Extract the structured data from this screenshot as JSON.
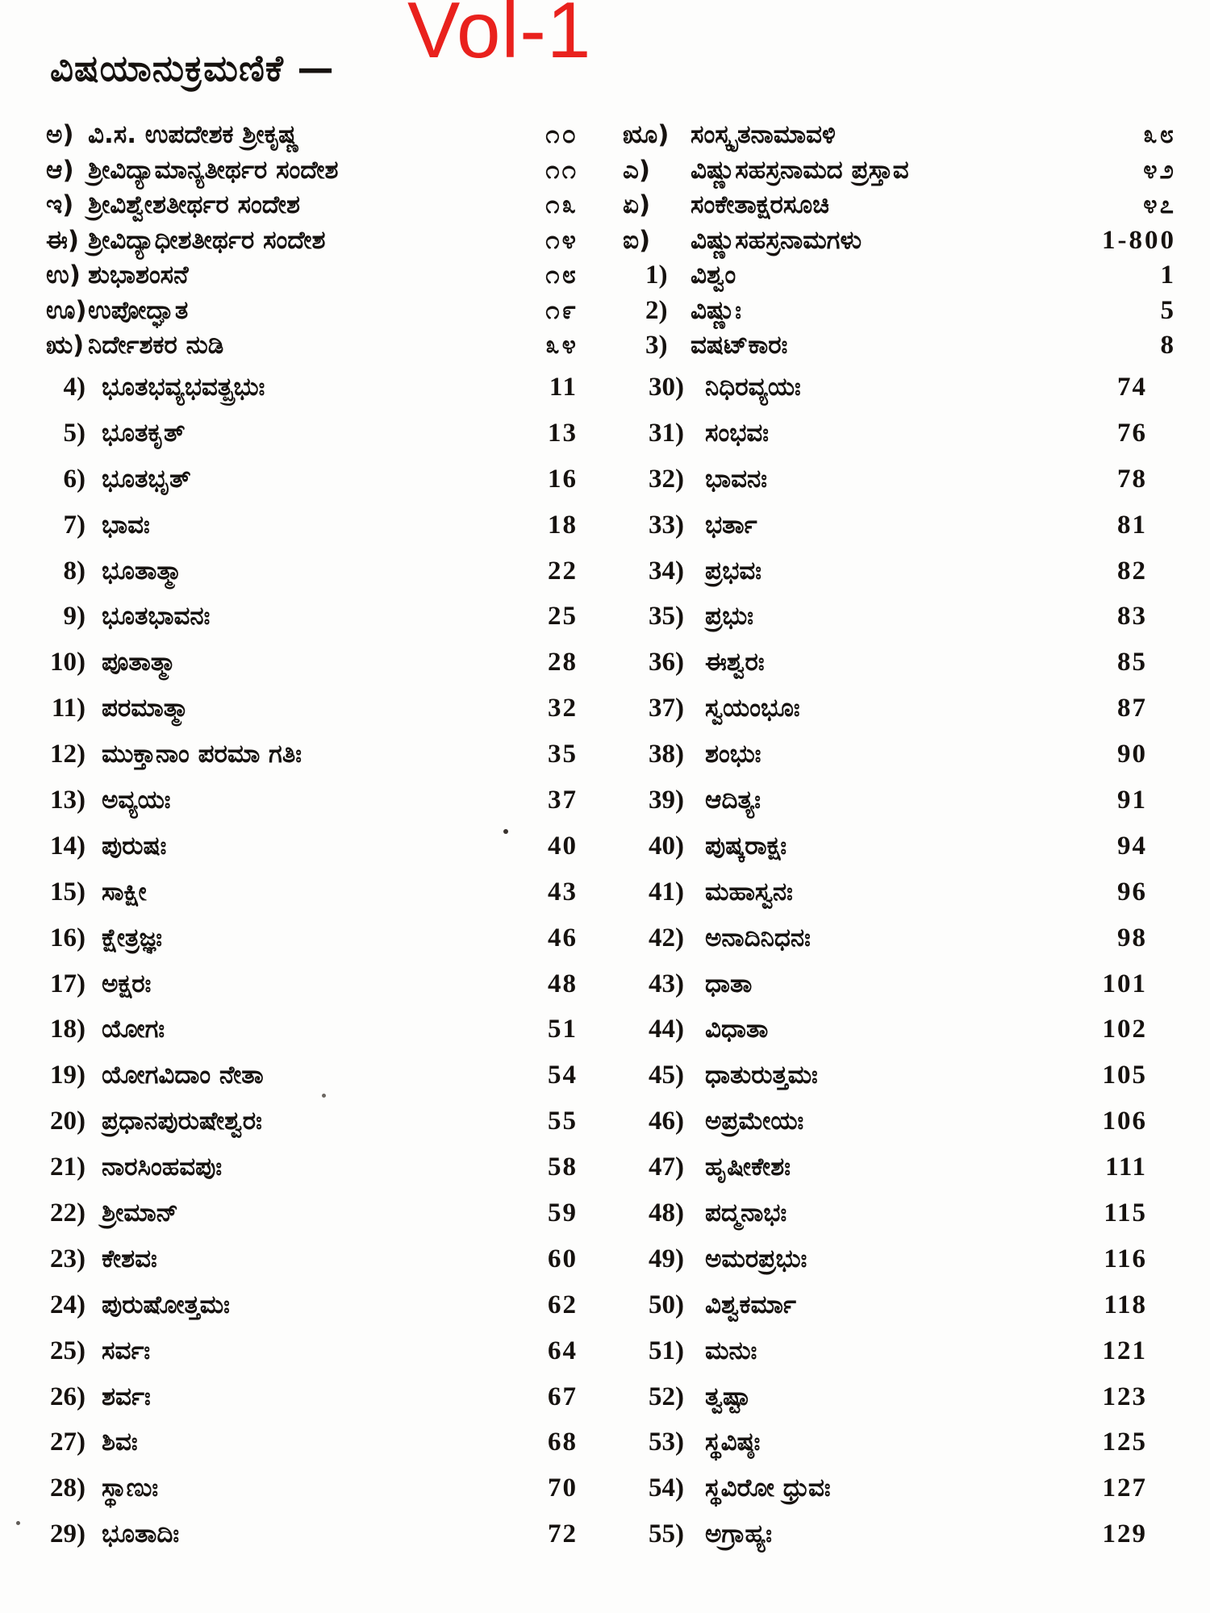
{
  "page": {
    "volume_label": "Vol-1",
    "heading": "ವಿಷಯಾನುಕ್ರಮಣಿಕೆ —"
  },
  "colors": {
    "volume_red": "#e9211d",
    "ink": "#16120f",
    "paper": "#fdfdfc"
  },
  "front_matter": {
    "left": [
      {
        "label": "ಅ)",
        "title": "ವಿ.ಸ. ಉಪದೇಶಕ ಶ್ರೀಕೃಷ್ಣ",
        "page": "೧೦"
      },
      {
        "label": "ಆ)",
        "title": "ಶ್ರೀವಿದ್ಯಾಮಾನ್ಯತೀರ್ಥರ ಸಂದೇಶ",
        "page": "೧೧"
      },
      {
        "label": "ಇ)",
        "title": "ಶ್ರೀವಿಶ್ವೇಶತೀರ್ಥರ ಸಂದೇಶ",
        "page": "೧೩"
      },
      {
        "label": "ಈ)",
        "title": "ಶ್ರೀವಿದ್ಯಾಧೀಶತೀರ್ಥರ ಸಂದೇಶ",
        "page": "೧೪"
      },
      {
        "label": "ಉ)",
        "title": "ಶುಭಾಶಂಸನೆ",
        "page": "೧೮"
      },
      {
        "label": "ಊ)",
        "title": "ಉಪೋದ್ಘಾತ",
        "page": "೧೯"
      },
      {
        "label": "ಋ)",
        "title": "ನಿರ್ದೇಶಕರ ನುಡಿ",
        "page": "೩೪"
      }
    ],
    "right": [
      {
        "label": "ೠ)",
        "title": "ಸಂಸ್ಕೃತನಾಮಾವಳಿ",
        "page": "೩೮"
      },
      {
        "label": "ಎ)",
        "title": "ವಿಷ್ಣುಸಹಸ್ರನಾಮದ ಪ್ರಸ್ತಾವ",
        "page": "೪೨"
      },
      {
        "label": "ಏ)",
        "title": "ಸಂಕೇತಾಕ್ಷರಸೂಚಿ",
        "page": "೪೭"
      },
      {
        "label": "ಐ)",
        "title": "ವಿಷ್ಣುಸಹಸ್ರನಾಮಗಳು",
        "page": "1-800",
        "style": "range"
      },
      {
        "label": "1)",
        "title": "ವಿಶ್ವಂ",
        "page": "1",
        "style": "numbered"
      },
      {
        "label": "2)",
        "title": "ವಿಷ್ಣುಃ",
        "page": "5",
        "style": "numbered"
      },
      {
        "label": "3)",
        "title": "ವಷಟ್‌ಕಾರಃ",
        "page": "8",
        "style": "numbered"
      }
    ]
  },
  "names_index": {
    "left": [
      {
        "label": "4)",
        "title": "ಭೂತಭವ್ಯಭವತ್ಪ್ರಭುಃ",
        "page": "11"
      },
      {
        "label": "5)",
        "title": "ಭೂತಕೃತ್",
        "page": "13"
      },
      {
        "label": "6)",
        "title": "ಭೂತಭೃತ್",
        "page": "16"
      },
      {
        "label": "7)",
        "title": "ಭಾವಃ",
        "page": "18"
      },
      {
        "label": "8)",
        "title": "ಭೂತಾತ್ಮಾ",
        "page": "22"
      },
      {
        "label": "9)",
        "title": "ಭೂತಭಾವನಃ",
        "page": "25"
      },
      {
        "label": "10)",
        "title": "ಪೂತಾತ್ಮಾ",
        "page": "28"
      },
      {
        "label": "11)",
        "title": "ಪರಮಾತ್ಮಾ",
        "page": "32"
      },
      {
        "label": "12)",
        "title": "ಮುಕ್ತಾನಾಂ ಪರಮಾ ಗತಿಃ",
        "page": "35"
      },
      {
        "label": "13)",
        "title": "ಅವ್ಯಯಃ",
        "page": "37"
      },
      {
        "label": "14)",
        "title": "ಪುರುಷಃ",
        "page": "40"
      },
      {
        "label": "15)",
        "title": "ಸಾಕ್ಷೀ",
        "page": "43"
      },
      {
        "label": "16)",
        "title": "ಕ್ಷೇತ್ರಜ್ಞಃ",
        "page": "46"
      },
      {
        "label": "17)",
        "title": "ಅಕ್ಷರಃ",
        "page": "48"
      },
      {
        "label": "18)",
        "title": "ಯೋಗಃ",
        "page": "51"
      },
      {
        "label": "19)",
        "title": "ಯೋಗವಿದಾಂ ನೇತಾ",
        "page": "54"
      },
      {
        "label": "20)",
        "title": "ಪ್ರಧಾನಪುರುಷೇಶ್ವರಃ",
        "page": "55"
      },
      {
        "label": "21)",
        "title": "ನಾರಸಿಂಹವಪುಃ",
        "page": "58"
      },
      {
        "label": "22)",
        "title": "ಶ್ರೀಮಾನ್",
        "page": "59"
      },
      {
        "label": "23)",
        "title": "ಕೇಶವಃ",
        "page": "60"
      },
      {
        "label": "24)",
        "title": "ಪುರುಷೋತ್ತಮಃ",
        "page": "62"
      },
      {
        "label": "25)",
        "title": "ಸರ್ವಃ",
        "page": "64"
      },
      {
        "label": "26)",
        "title": "ಶರ್ವಃ",
        "page": "67"
      },
      {
        "label": "27)",
        "title": "ಶಿವಃ",
        "page": "68"
      },
      {
        "label": "28)",
        "title": "ಸ್ಥಾಣುಃ",
        "page": "70"
      },
      {
        "label": "29)",
        "title": "ಭೂತಾದಿಃ",
        "page": "72"
      }
    ],
    "right": [
      {
        "label": "30)",
        "title": "ನಿಧಿರವ್ಯಯಃ",
        "page": "74"
      },
      {
        "label": "31)",
        "title": "ಸಂಭವಃ",
        "page": "76"
      },
      {
        "label": "32)",
        "title": "ಭಾವನಃ",
        "page": "78"
      },
      {
        "label": "33)",
        "title": "ಭರ್ತಾ",
        "page": "81"
      },
      {
        "label": "34)",
        "title": "ಪ್ರಭವಃ",
        "page": "82"
      },
      {
        "label": "35)",
        "title": "ಪ್ರಭುಃ",
        "page": "83"
      },
      {
        "label": "36)",
        "title": "ಈಶ್ವರಃ",
        "page": "85"
      },
      {
        "label": "37)",
        "title": "ಸ್ವಯಂಭೂಃ",
        "page": "87"
      },
      {
        "label": "38)",
        "title": "ಶಂಭುಃ",
        "page": "90"
      },
      {
        "label": "39)",
        "title": "ಆದಿತ್ಯಃ",
        "page": "91"
      },
      {
        "label": "40)",
        "title": "ಪುಷ್ಕರಾಕ್ಷಃ",
        "page": "94"
      },
      {
        "label": "41)",
        "title": "ಮಹಾಸ್ವನಃ",
        "page": "96"
      },
      {
        "label": "42)",
        "title": "ಅನಾದಿನಿಧನಃ",
        "page": "98"
      },
      {
        "label": "43)",
        "title": "ಧಾತಾ",
        "page": "101"
      },
      {
        "label": "44)",
        "title": "ವಿಧಾತಾ",
        "page": "102"
      },
      {
        "label": "45)",
        "title": "ಧಾತುರುತ್ತಮಃ",
        "page": "105"
      },
      {
        "label": "46)",
        "title": "ಅಪ್ರಮೇಯಃ",
        "page": "106"
      },
      {
        "label": "47)",
        "title": "ಹೃಷೀಕೇಶಃ",
        "page": "111"
      },
      {
        "label": "48)",
        "title": "ಪದ್ಮನಾಭಃ",
        "page": "115"
      },
      {
        "label": "49)",
        "title": "ಅಮರಪ್ರಭುಃ",
        "page": "116"
      },
      {
        "label": "50)",
        "title": "ವಿಶ್ವಕರ್ಮಾ",
        "page": "118"
      },
      {
        "label": "51)",
        "title": "ಮನುಃ",
        "page": "121"
      },
      {
        "label": "52)",
        "title": "ತ್ವಷ್ಟಾ",
        "page": "123"
      },
      {
        "label": "53)",
        "title": "ಸ್ಥವಿಷ್ಠಃ",
        "page": "125"
      },
      {
        "label": "54)",
        "title": "ಸ್ಥವಿರೋ ಧ್ರುವಃ",
        "page": "127"
      },
      {
        "label": "55)",
        "title": "ಅಗ್ರಾಹ್ಯಃ",
        "page": "129"
      }
    ]
  }
}
